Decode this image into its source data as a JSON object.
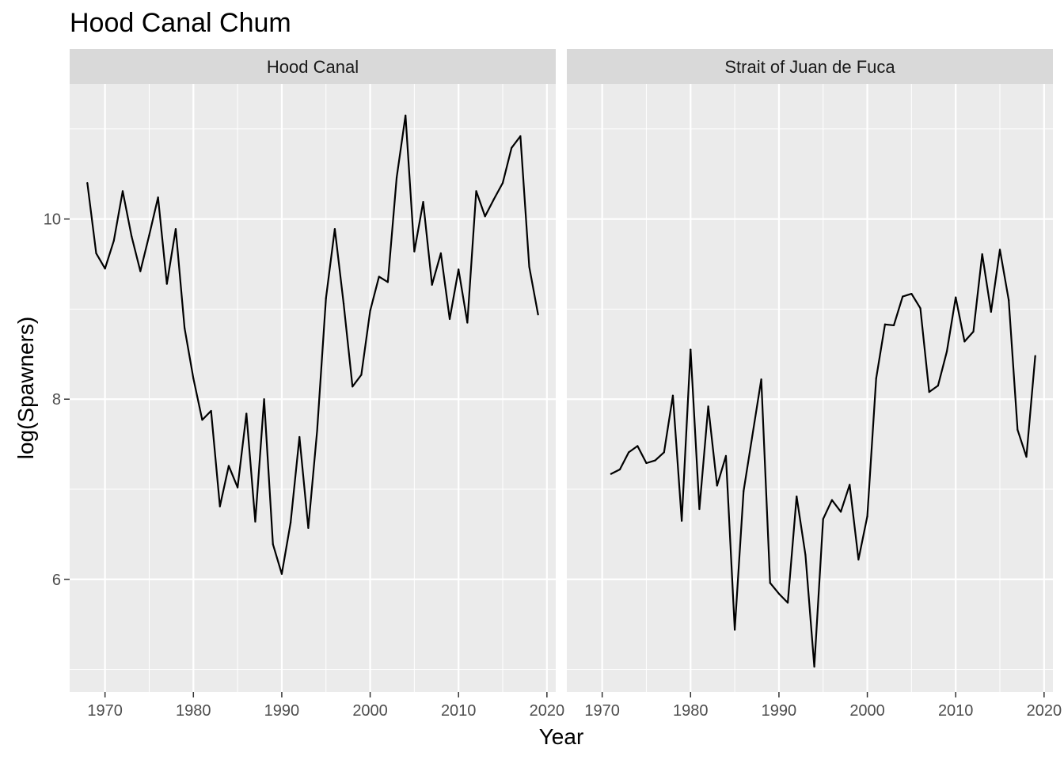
{
  "chart_data": {
    "type": "line",
    "title": "Hood Canal Chum",
    "xlabel": "Year",
    "ylabel": "log(Spawners)",
    "xlim": [
      1966,
      2021
    ],
    "ylim": [
      4.75,
      11.5
    ],
    "x_ticks": [
      1970,
      1980,
      1990,
      2000,
      2010,
      2020
    ],
    "y_ticks": [
      6,
      8,
      10
    ],
    "grid": true,
    "facets": [
      {
        "label": "Hood Canal",
        "x": [
          1968,
          1969,
          1970,
          1971,
          1972,
          1973,
          1974,
          1975,
          1976,
          1977,
          1978,
          1979,
          1980,
          1981,
          1982,
          1983,
          1984,
          1985,
          1986,
          1987,
          1988,
          1989,
          1990,
          1991,
          1992,
          1993,
          1994,
          1995,
          1996,
          1997,
          1998,
          1999,
          2000,
          2001,
          2002,
          2003,
          2004,
          2005,
          2006,
          2007,
          2008,
          2009,
          2010,
          2011,
          2012,
          2013,
          2014,
          2015,
          2016,
          2017,
          2018,
          2019
        ],
        "y": [
          10.4,
          9.62,
          9.45,
          9.76,
          10.31,
          9.81,
          9.42,
          9.82,
          10.24,
          9.28,
          9.89,
          8.79,
          8.23,
          7.77,
          7.87,
          6.81,
          7.26,
          7.02,
          7.84,
          6.64,
          8.0,
          6.39,
          6.06,
          6.63,
          7.58,
          6.57,
          7.65,
          9.12,
          9.89,
          9.06,
          8.14,
          8.27,
          8.98,
          9.36,
          9.3,
          10.46,
          11.15,
          9.64,
          10.19,
          9.27,
          9.62,
          8.89,
          9.44,
          8.85,
          10.31,
          10.03,
          10.22,
          10.4,
          10.79,
          10.92,
          9.47,
          8.94
        ]
      },
      {
        "label": "Strait of Juan de Fuca",
        "x": [
          1971,
          1972,
          1973,
          1974,
          1975,
          1976,
          1977,
          1978,
          1979,
          1980,
          1981,
          1982,
          1983,
          1984,
          1985,
          1986,
          1987,
          1988,
          1989,
          1990,
          1991,
          1992,
          1993,
          1994,
          1995,
          1996,
          1997,
          1998,
          1999,
          2000,
          2001,
          2002,
          2003,
          2004,
          2005,
          2006,
          2007,
          2008,
          2009,
          2010,
          2011,
          2012,
          2013,
          2014,
          2015,
          2016,
          2017,
          2018,
          2019
        ],
        "y": [
          7.17,
          7.22,
          7.41,
          7.48,
          7.29,
          7.32,
          7.41,
          8.04,
          6.65,
          8.55,
          6.78,
          7.92,
          7.04,
          7.37,
          5.44,
          6.98,
          7.6,
          8.22,
          5.96,
          5.84,
          5.74,
          6.92,
          6.27,
          5.03,
          6.67,
          6.88,
          6.75,
          7.05,
          6.22,
          6.7,
          8.23,
          8.83,
          8.82,
          9.14,
          9.17,
          9.01,
          8.08,
          8.15,
          8.53,
          9.13,
          8.64,
          8.75,
          9.61,
          8.97,
          9.66,
          9.1,
          7.66,
          7.36,
          8.48
        ]
      }
    ],
    "colors": {
      "panel_bg": "#ebebeb",
      "grid": "#ffffff",
      "strip_bg": "#d9d9d9",
      "line": "#000000"
    }
  }
}
